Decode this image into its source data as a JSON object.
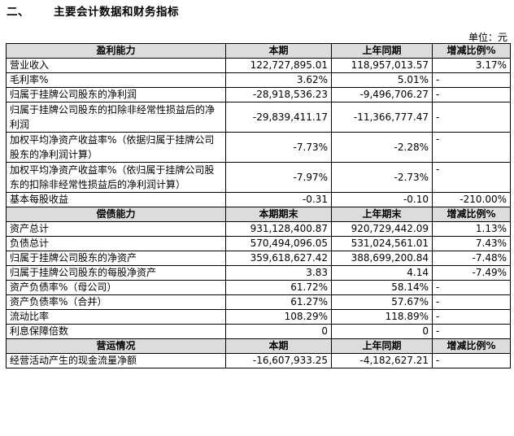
{
  "section": {
    "number": "二、",
    "title": "主要会计数据和财务指标"
  },
  "unit_label": "单位：元",
  "sections": [
    {
      "header": [
        "盈利能力",
        "本期",
        "上年同期",
        "增减比例%"
      ],
      "rows": [
        [
          "营业收入",
          "122,727,895.01",
          "118,957,013.57",
          "3.17%"
        ],
        [
          "毛利率%",
          "3.62%",
          "5.01%",
          "-"
        ],
        [
          "归属于挂牌公司股东的净利润",
          "-28,918,536.23",
          "-9,496,706.27",
          "-"
        ],
        [
          "归属于挂牌公司股东的扣除非经常性损益后的净利润",
          "-29,839,411.17",
          "-11,366,777.47",
          "-"
        ],
        [
          "加权平均净资产收益率%（依据归属于挂牌公司股东的净利润计算）",
          "-7.73%",
          "-2.28%",
          "-"
        ],
        [
          "加权平均净资产收益率%（依归属于挂牌公司股东的扣除非经常性损益后的净利润计算）",
          "-7.97%",
          "-2.73%",
          "-"
        ],
        [
          "基本每股收益",
          "-0.31",
          "-0.10",
          "-210.00%"
        ]
      ]
    },
    {
      "header": [
        "偿债能力",
        "本期期末",
        "上年期末",
        "增减比例%"
      ],
      "rows": [
        [
          "资产总计",
          "931,128,400.87",
          "920,729,442.09",
          "1.13%"
        ],
        [
          "负债总计",
          "570,494,096.05",
          "531,024,561.01",
          "7.43%"
        ],
        [
          "归属于挂牌公司股东的净资产",
          "359,618,627.42",
          "388,699,200.84",
          "-7.48%"
        ],
        [
          "归属于挂牌公司股东的每股净资产",
          "3.83",
          "4.14",
          "-7.49%"
        ],
        [
          "资产负债率%（母公司）",
          "61.72%",
          "58.14%",
          "-"
        ],
        [
          "资产负债率%（合并）",
          "61.27%",
          "57.67%",
          "-"
        ],
        [
          "流动比率",
          "108.29%",
          "118.89%",
          "-"
        ],
        [
          "利息保障倍数",
          "0",
          "0",
          "-"
        ]
      ]
    },
    {
      "header": [
        "营运情况",
        "本期",
        "上年同期",
        "增减比例%"
      ],
      "rows": [
        [
          "经营活动产生的现金流量净额",
          "-16,607,933.25",
          "-4,182,627.21",
          "-"
        ]
      ]
    }
  ]
}
